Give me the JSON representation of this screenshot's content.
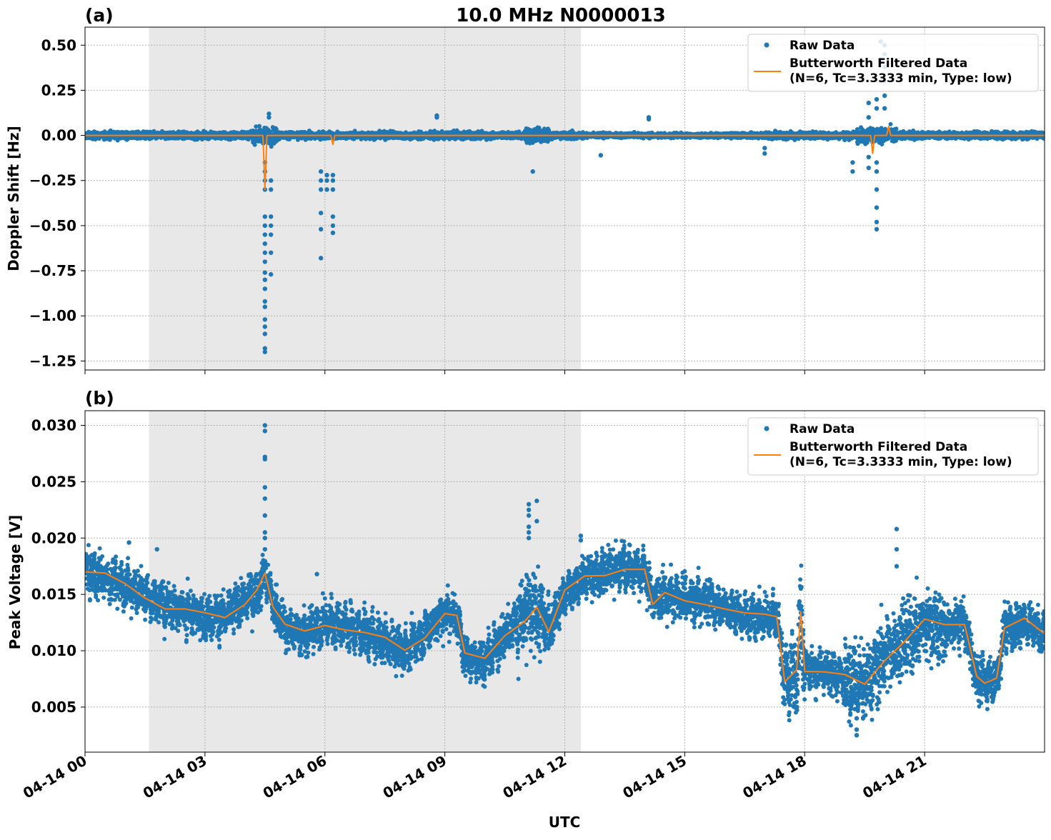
{
  "figure": {
    "title": "10.0 MHz N0000013",
    "xlabel": "UTC"
  },
  "chart_data": [
    {
      "panel_label": "(a)",
      "type": "scatter",
      "ylabel": "Doppler Shift [Hz]",
      "ylim": [
        -1.3,
        0.6
      ],
      "yticks": [
        0.5,
        0.25,
        0.0,
        -0.25,
        -0.5,
        -0.75,
        -1.0,
        -1.25
      ],
      "ytick_labels": [
        "0.50",
        "0.25",
        "0.00",
        "−0.25",
        "−0.50",
        "−0.75",
        "−1.00",
        "−1.25"
      ],
      "xlim_hours": [
        0,
        24
      ],
      "shaded_interval_hours": [
        1.6,
        12.4
      ],
      "grid": true,
      "legend": {
        "position": "top-right",
        "entries": [
          {
            "label": "Raw Data",
            "marker": "dot",
            "color": "#1f77b4"
          },
          {
            "label": "Butterworth Filtered Data\n(N=6, Tc=3.3333 min, Type: low)",
            "marker": "line",
            "color": "#ff7f0e"
          }
        ]
      },
      "series": [
        {
          "name": "Raw Data",
          "color": "#1f77b4",
          "band_hours": [
            0,
            24
          ],
          "baseline": 0.0,
          "band_halfwidth": 0.02
        },
        {
          "name": "Butterworth Filtered Data",
          "color": "#ff7f0e",
          "baseline": 0.0
        }
      ],
      "outliers": [
        {
          "x": 4.5,
          "y": [
            -1.2,
            -1.18,
            -1.1,
            -1.06,
            -1.02,
            -0.95,
            -0.92,
            -0.85,
            -0.8,
            -0.76,
            -0.7,
            -0.65,
            -0.6,
            -0.55,
            -0.5,
            -0.45,
            -0.3,
            -0.25,
            -0.2,
            -0.15
          ]
        },
        {
          "x": 4.65,
          "y": [
            -0.77,
            -0.65,
            -0.55,
            -0.5,
            -0.45,
            -0.3,
            -0.25
          ]
        },
        {
          "x": 5.9,
          "y": [
            -0.68,
            -0.52,
            -0.43,
            -0.3,
            -0.25,
            -0.2
          ]
        },
        {
          "x": 6.05,
          "y": [
            -0.3,
            -0.22,
            -0.25
          ]
        },
        {
          "x": 6.2,
          "y": [
            -0.54,
            -0.5,
            -0.45,
            -0.3,
            -0.25,
            -0.22
          ]
        },
        {
          "x": 4.6,
          "y": [
            0.1,
            0.12
          ]
        },
        {
          "x": 8.8,
          "y": [
            0.1,
            0.11
          ]
        },
        {
          "x": 11.2,
          "y": [
            -0.2
          ]
        },
        {
          "x": 12.9,
          "y": [
            -0.11
          ]
        },
        {
          "x": 14.1,
          "y": [
            0.1,
            0.09
          ]
        },
        {
          "x": 17.0,
          "y": [
            -0.07,
            -0.1
          ]
        },
        {
          "x": 19.8,
          "y": [
            -0.52,
            -0.48,
            -0.4,
            -0.3,
            -0.2,
            -0.15,
            0.15,
            0.2
          ]
        },
        {
          "x": 19.6,
          "y": [
            -0.18,
            -0.12,
            0.1,
            0.18
          ]
        },
        {
          "x": 20.0,
          "y": [
            0.5,
            0.45,
            0.38,
            0.3,
            0.22,
            0.15
          ]
        },
        {
          "x": 19.9,
          "y": [
            0.52,
            0.42,
            0.3
          ]
        },
        {
          "x": 19.2,
          "y": [
            -0.15,
            -0.2
          ]
        }
      ],
      "filtered_spikes": [
        {
          "x": 4.5,
          "y": -0.3
        },
        {
          "x": 6.2,
          "y": -0.05
        },
        {
          "x": 19.7,
          "y": -0.1
        },
        {
          "x": 20.1,
          "y": 0.05
        }
      ]
    },
    {
      "panel_label": "(b)",
      "type": "scatter",
      "ylabel": "Peak Voltage [V]",
      "ylim": [
        0.001,
        0.0313
      ],
      "yticks": [
        0.03,
        0.025,
        0.02,
        0.015,
        0.01,
        0.005
      ],
      "ytick_labels": [
        "0.030",
        "0.025",
        "0.020",
        "0.015",
        "0.010",
        "0.005"
      ],
      "xlim_hours": [
        0,
        24
      ],
      "xticks_hours": [
        0,
        3,
        6,
        9,
        12,
        15,
        18,
        21
      ],
      "xtick_labels": [
        "04-14 00",
        "04-14 03",
        "04-14 06",
        "04-14 09",
        "04-14 12",
        "04-14 15",
        "04-14 18",
        "04-14 21"
      ],
      "shaded_interval_hours": [
        1.6,
        12.4
      ],
      "grid": true,
      "legend": {
        "position": "top-right",
        "entries": [
          {
            "label": "Raw Data",
            "marker": "dot",
            "color": "#1f77b4"
          },
          {
            "label": "Butterworth Filtered Data\n(N=6, Tc=3.3333 min, Type: low)",
            "marker": "line",
            "color": "#ff7f0e"
          }
        ]
      },
      "series": [
        {
          "name": "Butterworth Filtered Data",
          "color": "#ff7f0e",
          "x_hours": [
            0,
            0.5,
            1,
            1.5,
            2,
            2.5,
            3,
            3.5,
            4,
            4.3,
            4.5,
            4.7,
            5,
            5.5,
            6,
            6.5,
            7,
            7.5,
            8,
            8.5,
            9,
            9.3,
            9.5,
            10,
            10.5,
            11,
            11.3,
            11.6,
            12,
            12.5,
            13,
            13.5,
            14,
            14.2,
            14.5,
            15,
            15.5,
            16,
            16.5,
            17,
            17.3,
            17.5,
            17.8,
            17.9,
            18,
            18.5,
            19,
            19.5,
            20,
            20.5,
            21,
            21.5,
            22,
            22.3,
            22.5,
            22.8,
            23,
            23.5,
            24
          ],
          "values": [
            0.017,
            0.0165,
            0.0158,
            0.015,
            0.014,
            0.0135,
            0.013,
            0.013,
            0.0145,
            0.015,
            0.017,
            0.0142,
            0.012,
            0.0115,
            0.0125,
            0.0122,
            0.0115,
            0.0108,
            0.01,
            0.0115,
            0.0135,
            0.013,
            0.0095,
            0.009,
            0.0115,
            0.013,
            0.0135,
            0.012,
            0.015,
            0.0165,
            0.017,
            0.0175,
            0.017,
            0.0145,
            0.0148,
            0.0145,
            0.0145,
            0.0138,
            0.013,
            0.013,
            0.0132,
            0.0075,
            0.008,
            0.0135,
            0.0085,
            0.008,
            0.0075,
            0.007,
            0.0095,
            0.011,
            0.0125,
            0.012,
            0.0125,
            0.0075,
            0.0075,
            0.0072,
            0.012,
            0.0125,
            0.0115
          ]
        },
        {
          "name": "Raw Data",
          "color": "#1f77b4",
          "band_halfwidth": 0.0017
        }
      ],
      "outliers": [
        {
          "x": 4.5,
          "y": [
            0.03,
            0.0295,
            0.0272,
            0.027,
            0.0245,
            0.0235,
            0.022,
            0.0205,
            0.02,
            0.019
          ]
        },
        {
          "x": 11.1,
          "y": [
            0.023,
            0.0225,
            0.022,
            0.021,
            0.0205,
            0.02
          ]
        },
        {
          "x": 11.3,
          "y": [
            0.0233,
            0.0215
          ]
        },
        {
          "x": 5.8,
          "y": [
            0.0168
          ]
        },
        {
          "x": 1.1,
          "y": [
            0.0196
          ]
        },
        {
          "x": 1.8,
          "y": [
            0.019
          ]
        },
        {
          "x": 20.3,
          "y": [
            0.0208,
            0.019,
            0.0175
          ]
        },
        {
          "x": 19.3,
          "y": [
            0.0025,
            0.003,
            0.004
          ]
        },
        {
          "x": 12.4,
          "y": [
            0.0202,
            0.0198
          ]
        }
      ]
    }
  ]
}
